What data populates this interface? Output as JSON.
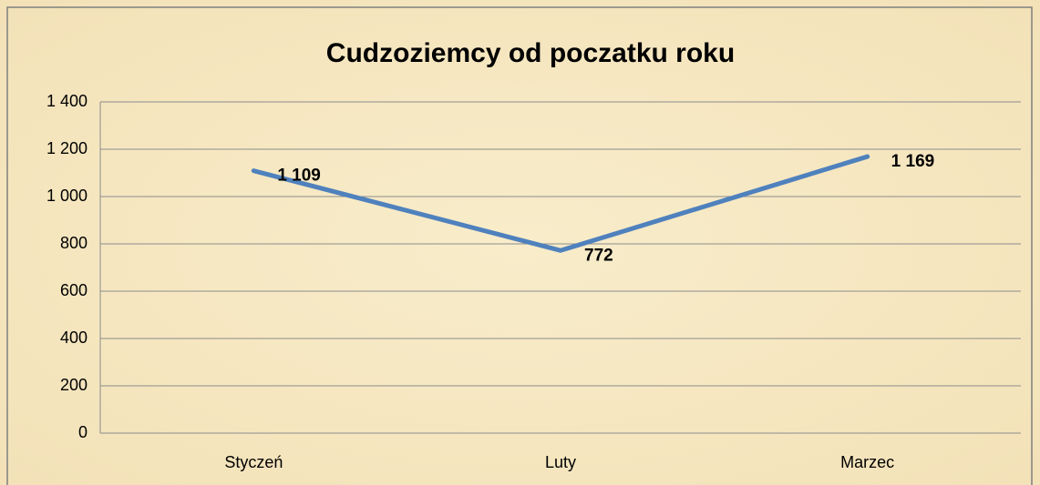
{
  "chart_data": {
    "type": "line",
    "title": "Cudzoziemcy od poczatku roku",
    "categories": [
      "Styczeń",
      "Luty",
      "Marzec"
    ],
    "values": [
      1109,
      772,
      1169
    ],
    "value_labels": [
      "1 109",
      "772",
      "1 169"
    ],
    "color": "#4f81bd",
    "ylim": [
      0,
      1400
    ],
    "yticks": [
      0,
      200,
      400,
      600,
      800,
      {
        "value": 1000,
        "label": "1 000"
      },
      {
        "value": 1200,
        "label": "1 200"
      },
      {
        "value": 1400,
        "label": "1 400"
      }
    ],
    "grid": true
  }
}
